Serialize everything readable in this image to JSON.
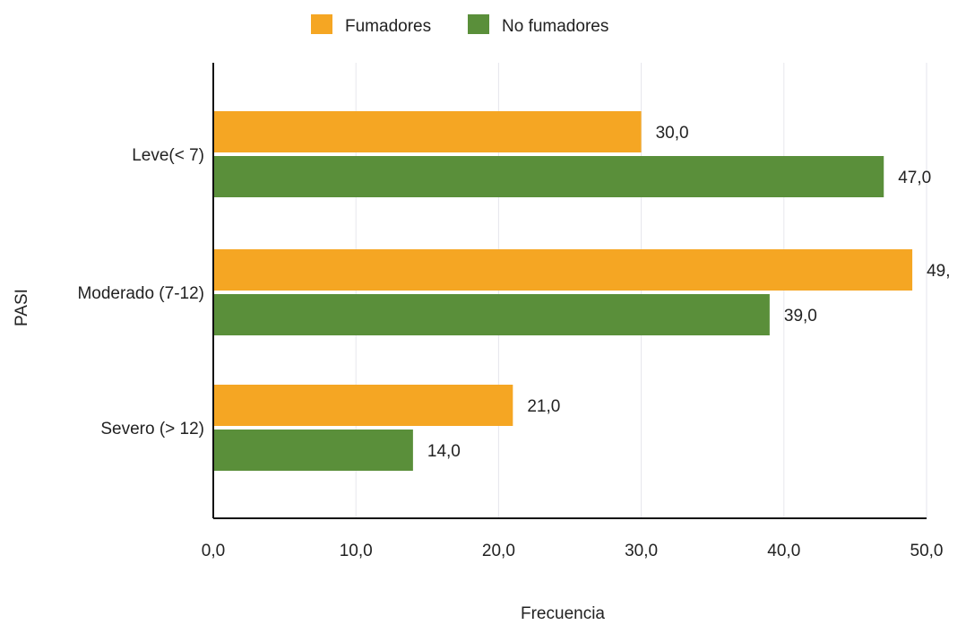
{
  "chart_data": {
    "type": "bar",
    "orientation": "horizontal",
    "categories": [
      "Leve(< 7)",
      "Moderado (7-12)",
      "Severo (> 12)"
    ],
    "series": [
      {
        "name": "Fumadores",
        "color": "#F5A623",
        "values": [
          30.0,
          49.0,
          21.0
        ],
        "labels": [
          "30,0",
          "49,",
          "21,0"
        ]
      },
      {
        "name": "No fumadores",
        "color": "#5A8F3A",
        "values": [
          47.0,
          39.0,
          14.0
        ],
        "labels": [
          "47,0",
          "39,0",
          "14,0"
        ]
      }
    ],
    "xlabel": "Frecuencia",
    "ylabel": "PASI",
    "xlim": [
      0,
      50
    ],
    "xticks": [
      0,
      10,
      20,
      30,
      40,
      50
    ],
    "xtick_labels": [
      "0,0",
      "10,0",
      "20,0",
      "30,0",
      "40,0",
      "50,0"
    ],
    "grid": "vertical",
    "legend_position": "top-center"
  }
}
